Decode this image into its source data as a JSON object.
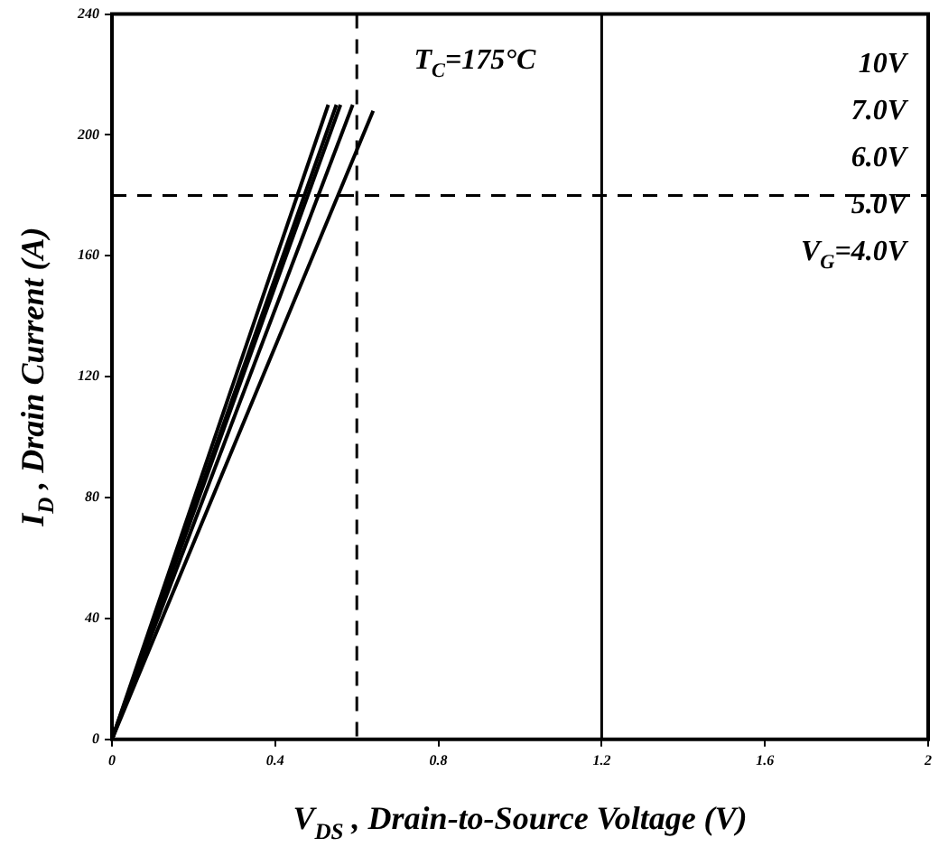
{
  "chart_data": {
    "type": "line",
    "xlabel": "V$_{DS}$ , Drain-to-Source Voltage (V)",
    "ylabel": "I$_{D}$ , Drain Current (A)",
    "annotations": [
      "T$_{C}$=175°C"
    ],
    "xlim": [
      0,
      2
    ],
    "xticks": [
      0,
      0.4,
      0.8,
      1.2,
      1.6,
      2
    ],
    "ylim": [
      0,
      240
    ],
    "yticks": [
      0,
      40,
      80,
      120,
      160,
      200,
      240
    ],
    "grid": false,
    "legend": "top right",
    "marker": "none",
    "line_style": "solid",
    "ref_lines": [
      {
        "axis": "x",
        "value": 0.6,
        "line_style": "dashed",
        "color": "#000000"
      },
      {
        "axis": "x",
        "value": 1.2,
        "line_style": "solid",
        "color": "#000000"
      },
      {
        "axis": "y",
        "value": 180,
        "line_style": "dashed",
        "color": "#000000"
      }
    ],
    "series": [
      {
        "name": "10V",
        "color": "#000000",
        "x": [
          0,
          0.53
        ],
        "values": [
          0,
          210
        ]
      },
      {
        "name": "7.0V",
        "color": "#000000",
        "x": [
          0,
          0.55
        ],
        "values": [
          0,
          210
        ]
      },
      {
        "name": "6.0V",
        "color": "#000000",
        "x": [
          0,
          0.56
        ],
        "values": [
          0,
          210
        ]
      },
      {
        "name": "5.0V",
        "color": "#000000",
        "x": [
          0,
          0.59
        ],
        "values": [
          0,
          210
        ]
      },
      {
        "name": "V$_{G}$=4.0V",
        "color": "#000000",
        "x": [
          0,
          0.64
        ],
        "values": [
          0,
          208
        ]
      }
    ]
  }
}
